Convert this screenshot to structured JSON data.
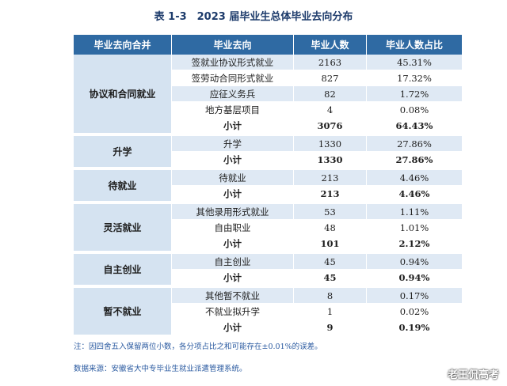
{
  "title": "表 1-3　2023 届毕业生总体毕业去向分布",
  "headers": [
    "毕业去向合并",
    "毕业去向",
    "毕业人数",
    "毕业人数占比"
  ],
  "groups": [
    {
      "category": "协议和合同就业",
      "rows": [
        {
          "name": "签就业协议形式就业",
          "count": "2163",
          "pct": "45.31%"
        },
        {
          "name": "签劳动合同形式就业",
          "count": "827",
          "pct": "17.32%"
        },
        {
          "name": "应征义务兵",
          "count": "82",
          "pct": "1.72%"
        },
        {
          "name": "地方基层项目",
          "count": "4",
          "pct": "0.08%"
        }
      ],
      "subtotal": {
        "name": "小计",
        "count": "3076",
        "pct": "64.43%"
      }
    },
    {
      "category": "升学",
      "rows": [
        {
          "name": "升学",
          "count": "1330",
          "pct": "27.86%"
        }
      ],
      "subtotal": {
        "name": "小计",
        "count": "1330",
        "pct": "27.86%"
      }
    },
    {
      "category": "待就业",
      "rows": [
        {
          "name": "待就业",
          "count": "213",
          "pct": "4.46%"
        }
      ],
      "subtotal": {
        "name": "小计",
        "count": "213",
        "pct": "4.46%"
      }
    },
    {
      "category": "灵活就业",
      "rows": [
        {
          "name": "其他录用形式就业",
          "count": "53",
          "pct": "1.11%"
        },
        {
          "name": "自由职业",
          "count": "48",
          "pct": "1.01%"
        }
      ],
      "subtotal": {
        "name": "小计",
        "count": "101",
        "pct": "2.12%"
      }
    },
    {
      "category": "自主创业",
      "rows": [
        {
          "name": "自主创业",
          "count": "45",
          "pct": "0.94%"
        }
      ],
      "subtotal": {
        "name": "小计",
        "count": "45",
        "pct": "0.94%"
      }
    },
    {
      "category": "暂不就业",
      "rows": [
        {
          "name": "其他暂不就业",
          "count": "8",
          "pct": "0.17%"
        },
        {
          "name": "不就业拟升学",
          "count": "1",
          "pct": "0.02%"
        }
      ],
      "subtotal": {
        "name": "小计",
        "count": "9",
        "pct": "0.19%"
      }
    }
  ],
  "note": "注：因四舍五入保留两位小数，各分项占比之和可能存在±0.01%的误差。",
  "source": "数据来源：安徽省大中专毕业生就业派遣管理系统。",
  "watermark": "老王侃高考"
}
